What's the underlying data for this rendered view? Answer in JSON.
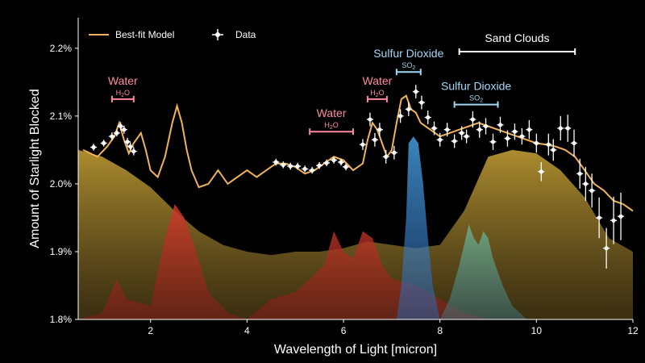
{
  "colors": {
    "model": "#f2b259",
    "data": "#ffffff",
    "water_label": "#ff8a9e",
    "so2_label": "#9fd9f5",
    "sand_label": "#ffffff",
    "sand_fill": "#c9a437",
    "water_fill": "#c0392b",
    "so2_fill": "#3d8fd1",
    "so2_second_fill": "#5fae8e",
    "background": "#000000"
  },
  "chart_data": {
    "type": "line",
    "title": "",
    "xlabel": "Wavelength of Light [micron]",
    "ylabel": "Amount of Starlight Blocked",
    "xlim": [
      0.5,
      12
    ],
    "ylim": [
      1.8,
      2.245
    ],
    "xticks": [
      {
        "value": 2,
        "label": "2"
      },
      {
        "value": 4,
        "label": "4"
      },
      {
        "value": 6,
        "label": "6"
      },
      {
        "value": 8,
        "label": "8"
      },
      {
        "value": 10,
        "label": "10"
      },
      {
        "value": 12,
        "label": "12"
      }
    ],
    "yticks": [
      {
        "value": 1.8,
        "label": "1.8%"
      },
      {
        "value": 1.9,
        "label": "1.9%"
      },
      {
        "value": 2.0,
        "label": "2.0%"
      },
      {
        "value": 2.1,
        "label": "2.1%"
      },
      {
        "value": 2.2,
        "label": "2.2%"
      }
    ],
    "legend": {
      "position": "top-left",
      "entries": [
        {
          "label": "Best-fit Model",
          "kind": "line"
        },
        {
          "label": "Data",
          "kind": "marker"
        }
      ]
    },
    "model": {
      "x": [
        0.6,
        0.9,
        1.1,
        1.25,
        1.35,
        1.45,
        1.55,
        1.65,
        1.8,
        1.9,
        2.0,
        2.15,
        2.3,
        2.45,
        2.55,
        2.65,
        2.75,
        2.85,
        3.0,
        3.2,
        3.4,
        3.6,
        3.8,
        4.0,
        4.2,
        4.4,
        4.6,
        4.8,
        5.0,
        5.2,
        5.4,
        5.6,
        5.8,
        6.0,
        6.2,
        6.4,
        6.5,
        6.6,
        6.7,
        6.8,
        6.9,
        7.0,
        7.1,
        7.2,
        7.3,
        7.4,
        7.5,
        7.6,
        7.7,
        7.8,
        7.9,
        8.0,
        8.2,
        8.4,
        8.6,
        8.8,
        9.0,
        9.2,
        9.4,
        9.6,
        9.8,
        10.0,
        10.2,
        10.4,
        10.6,
        10.8,
        11.0,
        11.2,
        11.4,
        11.6,
        11.8,
        12.0
      ],
      "y": [
        2.05,
        2.04,
        2.055,
        2.07,
        2.09,
        2.065,
        2.045,
        2.06,
        2.075,
        2.05,
        2.02,
        2.01,
        2.04,
        2.09,
        2.115,
        2.09,
        2.05,
        2.02,
        1.995,
        2.0,
        2.02,
        2.0,
        2.01,
        2.02,
        2.01,
        2.02,
        2.03,
        2.03,
        2.025,
        2.015,
        2.02,
        2.03,
        2.04,
        2.035,
        2.02,
        2.03,
        2.065,
        2.09,
        2.08,
        2.06,
        2.04,
        2.05,
        2.09,
        2.125,
        2.13,
        2.11,
        2.105,
        2.09,
        2.085,
        2.08,
        2.075,
        2.07,
        2.075,
        2.08,
        2.085,
        2.09,
        2.085,
        2.08,
        2.075,
        2.07,
        2.065,
        2.06,
        2.058,
        2.055,
        2.05,
        2.04,
        2.02,
        2.0,
        1.99,
        1.975,
        1.97,
        1.96
      ]
    },
    "data_points": [
      {
        "x": 0.82,
        "y": 2.054,
        "err": 0.005
      },
      {
        "x": 1.03,
        "y": 2.06,
        "err": 0.005
      },
      {
        "x": 1.2,
        "y": 2.07,
        "err": 0.006
      },
      {
        "x": 1.3,
        "y": 2.075,
        "err": 0.005
      },
      {
        "x": 1.38,
        "y": 2.085,
        "err": 0.006
      },
      {
        "x": 1.45,
        "y": 2.08,
        "err": 0.006
      },
      {
        "x": 1.52,
        "y": 2.062,
        "err": 0.006
      },
      {
        "x": 1.58,
        "y": 2.055,
        "err": 0.006
      },
      {
        "x": 1.65,
        "y": 2.048,
        "err": 0.006
      },
      {
        "x": 4.6,
        "y": 2.032,
        "err": 0.005
      },
      {
        "x": 4.75,
        "y": 2.028,
        "err": 0.005
      },
      {
        "x": 4.9,
        "y": 2.026,
        "err": 0.005
      },
      {
        "x": 5.05,
        "y": 2.026,
        "err": 0.005
      },
      {
        "x": 5.2,
        "y": 2.022,
        "err": 0.005
      },
      {
        "x": 5.35,
        "y": 2.02,
        "err": 0.005
      },
      {
        "x": 5.5,
        "y": 2.027,
        "err": 0.005
      },
      {
        "x": 5.65,
        "y": 2.031,
        "err": 0.005
      },
      {
        "x": 5.8,
        "y": 2.035,
        "err": 0.005
      },
      {
        "x": 5.95,
        "y": 2.032,
        "err": 0.005
      },
      {
        "x": 6.05,
        "y": 2.025,
        "err": 0.005
      },
      {
        "x": 6.4,
        "y": 2.058,
        "err": 0.008
      },
      {
        "x": 6.55,
        "y": 2.095,
        "err": 0.01
      },
      {
        "x": 6.65,
        "y": 2.065,
        "err": 0.01
      },
      {
        "x": 6.75,
        "y": 2.08,
        "err": 0.01
      },
      {
        "x": 6.88,
        "y": 2.04,
        "err": 0.01
      },
      {
        "x": 7.05,
        "y": 2.046,
        "err": 0.01
      },
      {
        "x": 7.18,
        "y": 2.1,
        "err": 0.01
      },
      {
        "x": 7.35,
        "y": 2.11,
        "err": 0.01
      },
      {
        "x": 7.5,
        "y": 2.136,
        "err": 0.01
      },
      {
        "x": 7.62,
        "y": 2.12,
        "err": 0.01
      },
      {
        "x": 7.75,
        "y": 2.098,
        "err": 0.01
      },
      {
        "x": 7.88,
        "y": 2.082,
        "err": 0.01
      },
      {
        "x": 8.0,
        "y": 2.065,
        "err": 0.01
      },
      {
        "x": 8.15,
        "y": 2.08,
        "err": 0.01
      },
      {
        "x": 8.3,
        "y": 2.063,
        "err": 0.01
      },
      {
        "x": 8.45,
        "y": 2.075,
        "err": 0.01
      },
      {
        "x": 8.55,
        "y": 2.07,
        "err": 0.01
      },
      {
        "x": 8.68,
        "y": 2.095,
        "err": 0.012
      },
      {
        "x": 8.82,
        "y": 2.08,
        "err": 0.012
      },
      {
        "x": 8.95,
        "y": 2.085,
        "err": 0.012
      },
      {
        "x": 9.1,
        "y": 2.062,
        "err": 0.012
      },
      {
        "x": 9.25,
        "y": 2.087,
        "err": 0.012
      },
      {
        "x": 9.4,
        "y": 2.067,
        "err": 0.012
      },
      {
        "x": 9.55,
        "y": 2.077,
        "err": 0.012
      },
      {
        "x": 9.7,
        "y": 2.07,
        "err": 0.012
      },
      {
        "x": 9.85,
        "y": 2.08,
        "err": 0.014
      },
      {
        "x": 10.0,
        "y": 2.06,
        "err": 0.014
      },
      {
        "x": 10.1,
        "y": 2.018,
        "err": 0.014
      },
      {
        "x": 10.25,
        "y": 2.058,
        "err": 0.016
      },
      {
        "x": 10.35,
        "y": 2.05,
        "err": 0.016
      },
      {
        "x": 10.5,
        "y": 2.082,
        "err": 0.018
      },
      {
        "x": 10.65,
        "y": 2.082,
        "err": 0.02
      },
      {
        "x": 10.78,
        "y": 2.06,
        "err": 0.02
      },
      {
        "x": 10.9,
        "y": 2.015,
        "err": 0.022
      },
      {
        "x": 11.02,
        "y": 2.0,
        "err": 0.025
      },
      {
        "x": 11.15,
        "y": 1.99,
        "err": 0.025
      },
      {
        "x": 11.3,
        "y": 1.95,
        "err": 0.03
      },
      {
        "x": 11.45,
        "y": 1.905,
        "err": 0.03
      },
      {
        "x": 11.6,
        "y": 1.946,
        "err": 0.035
      },
      {
        "x": 11.75,
        "y": 1.952,
        "err": 0.035
      }
    ],
    "contributions": [
      {
        "molecule": "sand",
        "x": [
          0.5,
          1.0,
          1.5,
          2.0,
          2.5,
          3.0,
          3.5,
          4.0,
          4.5,
          5.0,
          5.5,
          6.0,
          6.5,
          7.0,
          7.5,
          8.0,
          8.5,
          9.0,
          9.5,
          10.0,
          10.5,
          11.0,
          11.5,
          12.0
        ],
        "y": [
          2.05,
          2.04,
          2.02,
          1.995,
          1.96,
          1.93,
          1.91,
          1.9,
          1.895,
          1.9,
          1.9,
          1.905,
          1.915,
          1.91,
          1.905,
          1.91,
          1.96,
          2.04,
          2.05,
          2.045,
          2.02,
          1.98,
          1.92,
          1.9
        ]
      },
      {
        "molecule": "water",
        "x": [
          0.5,
          1.0,
          1.3,
          1.5,
          2.0,
          2.3,
          2.5,
          2.7,
          2.9,
          3.2,
          3.6,
          4.0,
          4.5,
          5.0,
          5.3,
          5.6,
          5.8,
          6.0,
          6.2,
          6.4,
          6.6,
          6.8,
          7.0,
          7.5,
          8.0,
          8.5,
          9.0,
          9.5,
          10.0,
          11.0,
          12.0
        ],
        "y": [
          1.8,
          1.81,
          1.86,
          1.83,
          1.82,
          1.92,
          1.97,
          1.95,
          1.91,
          1.84,
          1.81,
          1.8,
          1.83,
          1.84,
          1.86,
          1.88,
          1.93,
          1.9,
          1.89,
          1.93,
          1.92,
          1.88,
          1.86,
          1.85,
          1.83,
          1.81,
          1.8,
          1.8,
          1.8,
          1.8,
          1.8
        ]
      },
      {
        "molecule": "SO2",
        "x": [
          7.1,
          7.2,
          7.3,
          7.35,
          7.45,
          7.55,
          7.65,
          7.75,
          7.85,
          8.0
        ],
        "y": [
          1.8,
          1.85,
          1.95,
          2.06,
          2.07,
          2.06,
          2.0,
          1.92,
          1.85,
          1.8
        ]
      },
      {
        "molecule": "SO2-second",
        "x": [
          8.0,
          8.2,
          8.4,
          8.6,
          8.7,
          8.8,
          8.9,
          9.0,
          9.1,
          9.3,
          9.5,
          9.8,
          10.0
        ],
        "y": [
          1.8,
          1.83,
          1.88,
          1.94,
          1.92,
          1.91,
          1.93,
          1.92,
          1.89,
          1.85,
          1.82,
          1.8,
          1.8
        ]
      }
    ],
    "annotations": [
      {
        "id": "water-1",
        "label": "Water",
        "sub": "H2O",
        "color": "water",
        "x1": 1.2,
        "x2": 1.65,
        "y": 2.125
      },
      {
        "id": "water-2",
        "label": "Water",
        "sub": "H2O",
        "color": "water",
        "x1": 5.3,
        "x2": 6.2,
        "y": 2.077
      },
      {
        "id": "water-3",
        "label": "Water",
        "sub": "H2O",
        "color": "water",
        "x1": 6.5,
        "x2": 6.9,
        "y": 2.125
      },
      {
        "id": "so2-1",
        "label": "Sulfur Dioxide",
        "sub": "SO2",
        "color": "so2",
        "x1": 7.1,
        "x2": 7.6,
        "y": 2.165
      },
      {
        "id": "so2-2",
        "label": "Sulfur Dioxide",
        "sub": "SO2",
        "color": "so2",
        "x1": 8.3,
        "x2": 9.2,
        "y": 2.117
      },
      {
        "id": "sand",
        "label": "Sand Clouds",
        "sub": "",
        "color": "sand",
        "x1": 8.4,
        "x2": 10.8,
        "y": 2.195
      }
    ]
  }
}
